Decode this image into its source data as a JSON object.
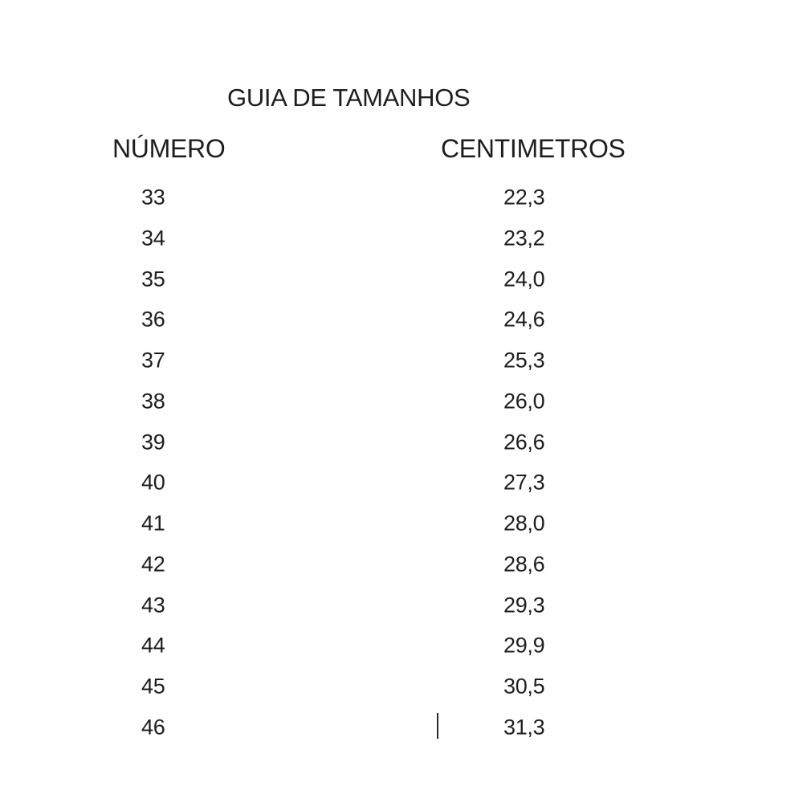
{
  "title": "GUIA DE TAMANHOS",
  "table": {
    "columns": [
      "NÚMERO",
      "CENTIMETROS"
    ],
    "rows": [
      [
        "33",
        "22,3"
      ],
      [
        "34",
        "23,2"
      ],
      [
        "35",
        "24,0"
      ],
      [
        "36",
        "24,6"
      ],
      [
        "37",
        "25,3"
      ],
      [
        "38",
        "26,0"
      ],
      [
        "39",
        "26,6"
      ],
      [
        "40",
        "27,3"
      ],
      [
        "41",
        "28,0"
      ],
      [
        "42",
        "28,6"
      ],
      [
        "43",
        "29,3"
      ],
      [
        "44",
        "29,9"
      ],
      [
        "45",
        "30,5"
      ],
      [
        "46",
        "31,3"
      ]
    ]
  },
  "chart_data": {
    "type": "table",
    "title": "GUIA DE TAMANHOS",
    "columns": [
      "NÚMERO",
      "CENTIMETROS"
    ],
    "rows": [
      [
        33,
        22.3
      ],
      [
        34,
        23.2
      ],
      [
        35,
        24.0
      ],
      [
        36,
        24.6
      ],
      [
        37,
        25.3
      ],
      [
        38,
        26.0
      ],
      [
        39,
        26.6
      ],
      [
        40,
        27.3
      ],
      [
        41,
        28.0
      ],
      [
        42,
        28.6
      ],
      [
        43,
        29.3
      ],
      [
        44,
        29.9
      ],
      [
        45,
        30.5
      ],
      [
        46,
        31.3
      ]
    ],
    "decimal_separator": ","
  },
  "colors": {
    "background": "#ffffff",
    "text": "#1e1e1e"
  }
}
